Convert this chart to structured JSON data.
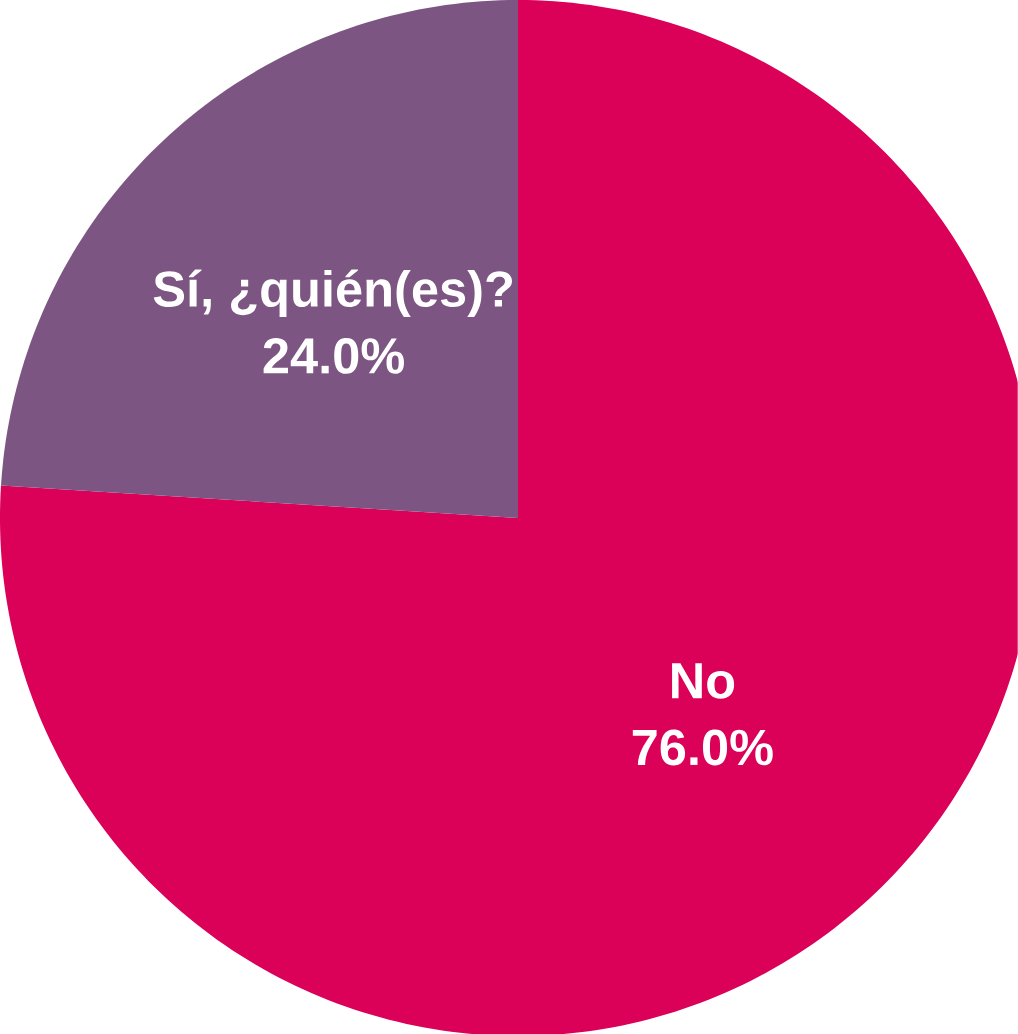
{
  "chart_data": {
    "type": "pie",
    "categories": [
      "No",
      "Sí, ¿quién(es)?"
    ],
    "values": [
      76.0,
      24.0
    ],
    "colors": [
      "#db0058",
      "#7d5583"
    ],
    "value_labels": [
      "76.0%",
      "24.0%"
    ]
  }
}
